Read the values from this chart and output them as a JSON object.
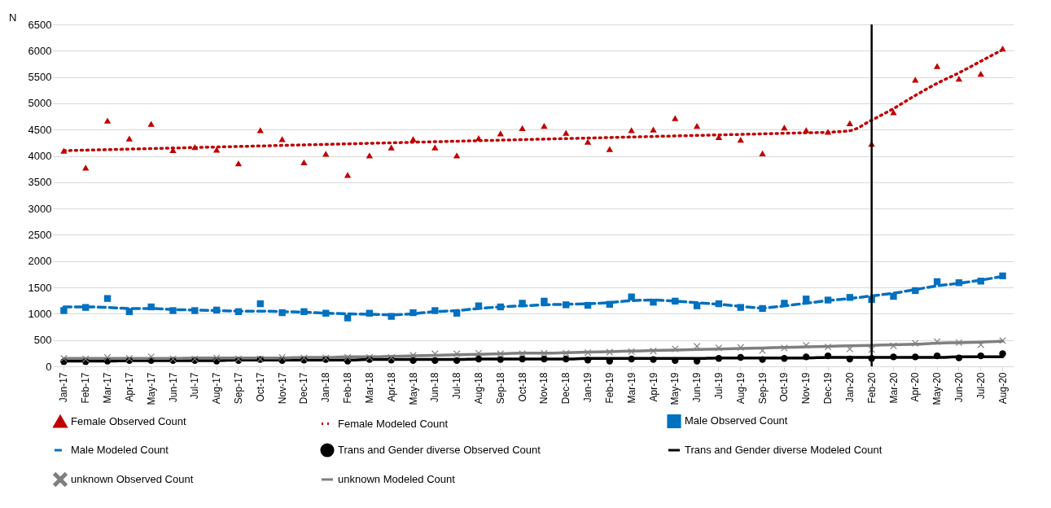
{
  "chart_data": {
    "type": "line",
    "ylabel": "N",
    "categories": [
      "Jan-17",
      "Feb-17",
      "Mar-17",
      "Apr-17",
      "May-17",
      "Jun-17",
      "Jul-17",
      "Aug-17",
      "Sep-17",
      "Oct-17",
      "Nov-17",
      "Dec-17",
      "Jan-18",
      "Feb-18",
      "Mar-18",
      "Apr-18",
      "May-18",
      "Jun-18",
      "Jul-18",
      "Aug-18",
      "Sep-18",
      "Oct-18",
      "Nov-18",
      "Dec-18",
      "Jan-19",
      "Feb-19",
      "Mar-19",
      "Apr-19",
      "May-19",
      "Jun-19",
      "Jul-19",
      "Aug-19",
      "Sep-19",
      "Oct-19",
      "Nov-19",
      "Dec-19",
      "Jan-20",
      "Feb-20",
      "Mar-20",
      "Apr-20",
      "May-20",
      "Jun-20",
      "Jul-20",
      "Aug-20"
    ],
    "series": [
      {
        "name": "Female Observed Count",
        "type": "scatter",
        "marker": "triangle",
        "color": "#c00000",
        "values": [
          4100,
          3780,
          4670,
          4330,
          4610,
          4110,
          4170,
          4120,
          3860,
          4490,
          4320,
          3880,
          4040,
          3640,
          4010,
          4160,
          4320,
          4160,
          4010,
          4340,
          4430,
          4530,
          4570,
          4440,
          4270,
          4130,
          4490,
          4500,
          4720,
          4570,
          4360,
          4310,
          4050,
          4540,
          4490,
          4460,
          4620,
          4230,
          4830,
          5450,
          5710,
          5470,
          5560,
          6040
        ]
      },
      {
        "name": "Female Modeled Count",
        "line_style": "dotted",
        "color": "#c00000",
        "values": [
          4100,
          4110,
          4120,
          4130,
          4140,
          4150,
          4160,
          4170,
          4180,
          4190,
          4200,
          4210,
          4220,
          4230,
          4240,
          4250,
          4260,
          4270,
          4280,
          4290,
          4300,
          4310,
          4320,
          4330,
          4340,
          4350,
          4360,
          4370,
          4380,
          4390,
          4400,
          4410,
          4420,
          4430,
          4440,
          4450,
          4480,
          4680,
          4900,
          5150,
          5380,
          5580,
          5800,
          6020
        ]
      },
      {
        "name": "Male Observed Count",
        "type": "scatter",
        "marker": "square",
        "color": "#0070c0",
        "values": [
          1060,
          1120,
          1290,
          1040,
          1130,
          1060,
          1060,
          1070,
          1040,
          1190,
          1020,
          1040,
          1010,
          920,
          1010,
          950,
          1020,
          1060,
          1010,
          1150,
          1130,
          1200,
          1240,
          1170,
          1160,
          1180,
          1320,
          1220,
          1240,
          1150,
          1190,
          1120,
          1100,
          1200,
          1280,
          1260,
          1310,
          1270,
          1330,
          1440,
          1610,
          1590,
          1620,
          1720
        ]
      },
      {
        "name": "Male Modeled Count",
        "line_style": "dashed",
        "color": "#0070c0",
        "values": [
          1130,
          1130,
          1120,
          1100,
          1100,
          1080,
          1070,
          1060,
          1050,
          1050,
          1040,
          1030,
          1010,
          1000,
          990,
          980,
          1000,
          1040,
          1060,
          1100,
          1130,
          1150,
          1170,
          1180,
          1190,
          1210,
          1250,
          1260,
          1240,
          1210,
          1180,
          1140,
          1110,
          1150,
          1200,
          1250,
          1290,
          1340,
          1390,
          1460,
          1530,
          1580,
          1640,
          1710
        ]
      },
      {
        "name": "Trans and Gender diverse Observed Count",
        "type": "scatter",
        "marker": "circle",
        "color": "#000000",
        "values": [
          90,
          90,
          100,
          110,
          110,
          110,
          110,
          100,
          110,
          130,
          110,
          120,
          130,
          100,
          130,
          120,
          110,
          110,
          110,
          140,
          130,
          140,
          140,
          140,
          120,
          100,
          140,
          130,
          110,
          100,
          150,
          170,
          130,
          150,
          180,
          200,
          140,
          150,
          180,
          180,
          200,
          160,
          200,
          240
        ]
      },
      {
        "name": "Trans and Gender diverse Modeled Count",
        "line_style": "solid",
        "color": "#000000",
        "values": [
          100,
          100,
          100,
          110,
          110,
          110,
          110,
          110,
          120,
          120,
          120,
          120,
          120,
          120,
          130,
          130,
          130,
          130,
          130,
          140,
          140,
          140,
          140,
          140,
          150,
          150,
          150,
          150,
          150,
          150,
          160,
          160,
          160,
          160,
          160,
          170,
          170,
          170,
          170,
          170,
          170,
          180,
          180,
          180
        ]
      },
      {
        "name": "unknown Observed Count",
        "type": "scatter",
        "marker": "cross",
        "color": "#7f7f7f",
        "values": [
          150,
          140,
          170,
          150,
          180,
          140,
          140,
          160,
          140,
          140,
          170,
          160,
          160,
          170,
          170,
          170,
          210,
          240,
          240,
          250,
          240,
          240,
          250,
          250,
          260,
          270,
          280,
          290,
          330,
          380,
          350,
          360,
          300,
          350,
          400,
          370,
          330,
          320,
          390,
          440,
          470,
          450,
          410,
          490
        ]
      },
      {
        "name": "unknown Modeled Count",
        "line_style": "solid",
        "color": "#7f7f7f",
        "values": [
          150,
          150,
          150,
          150,
          150,
          150,
          160,
          160,
          160,
          160,
          160,
          170,
          170,
          180,
          180,
          190,
          200,
          210,
          220,
          230,
          240,
          250,
          250,
          260,
          270,
          280,
          290,
          300,
          310,
          320,
          330,
          340,
          350,
          360,
          370,
          380,
          390,
          400,
          410,
          420,
          440,
          450,
          460,
          480
        ]
      }
    ],
    "ylim": [
      0,
      6500
    ],
    "yticks": [
      0,
      500,
      1000,
      1500,
      2000,
      2500,
      3000,
      3500,
      4000,
      4500,
      5000,
      5500,
      6000,
      6500
    ],
    "grid": "y",
    "legend": "bottom",
    "ref_lines": [
      {
        "axis": "x",
        "value": "Feb-20",
        "color": "#000000"
      }
    ]
  }
}
